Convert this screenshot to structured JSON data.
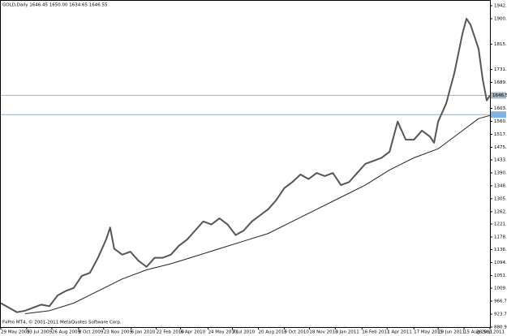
{
  "chart_data": {
    "type": "line",
    "title": "GOLD,Daily  1646.45 1650.00 1634.65 1646.55",
    "annotation": "FxPro MT4, © 2001-2011 MetaQuotes Software Corp.",
    "xlim": [
      0,
      604
    ],
    "xticks": [
      {
        "value": 0,
        "label": "29 May 2009"
      },
      {
        "value": 32,
        "label": "13 Jul 2009"
      },
      {
        "value": 63,
        "label": "26 Aug 2009"
      },
      {
        "value": 96,
        "label": "8 Oct 2009"
      },
      {
        "value": 127,
        "label": "23 Nov 2009"
      },
      {
        "value": 161,
        "label": "6 Jan 2010"
      },
      {
        "value": 192,
        "label": "22 Feb 2010"
      },
      {
        "value": 222,
        "label": "6 Apr 2010"
      },
      {
        "value": 256,
        "label": "24 May 2010"
      },
      {
        "value": 286,
        "label": "7 Jul 2010"
      },
      {
        "value": 318,
        "label": "20 Aug 2010"
      },
      {
        "value": 350,
        "label": "5 Oct 2010"
      },
      {
        "value": 381,
        "label": "18 Nov 2010"
      },
      {
        "value": 413,
        "label": "3 Jan 2011"
      },
      {
        "value": 446,
        "label": "16 Feb 2011"
      },
      {
        "value": 477,
        "label": "1 Apr 2011"
      },
      {
        "value": 510,
        "label": "17 May 2011"
      },
      {
        "value": 540,
        "label": "29 Jun 2011"
      },
      {
        "value": 572,
        "label": "15 Aug 2011"
      },
      {
        "value": 604,
        "label": "28 Sep 2011"
      }
    ],
    "ylim": [
      880.9,
      1961.7
    ],
    "yticks": [
      {
        "value": 1942.9,
        "label": "1942.90"
      },
      1900.05,
      {
        "value": 1815.9,
        "label": "1815.90"
      },
      {
        "value": 1731.9,
        "label": "1731.90"
      },
      {
        "value": 1689.5,
        "label": "1689.50"
      },
      {
        "value": 1603.6,
        "label": "1603.60"
      },
      {
        "value": 1560.7,
        "label": "1560.70"
      },
      1517.85,
      {
        "value": 1475.2,
        "label": "1475.20"
      },
      {
        "value": 1433.3,
        "label": "1433.30"
      },
      {
        "value": 1390.4,
        "label": "1390.40"
      },
      {
        "value": 1348,
        "label": "1348.00"
      },
      1305.15,
      {
        "value": 1262.3,
        "label": "1262.30"
      },
      1221.45,
      {
        "value": 1178.5,
        "label": "1178.50"
      },
      {
        "value": 1136.9,
        "label": "1136.90"
      },
      {
        "value": 1094,
        "label": "1094.00"
      },
      1051.05,
      {
        "value": 1009.5,
        "label": "1009.50"
      },
      {
        "value": 966.7,
        "label": "966.70"
      },
      923.75,
      {
        "value": 880.9,
        "label": "880.90"
      }
    ],
    "series": [
      {
        "color": "#555555",
        "x": [
          0,
          10,
          20,
          30,
          40,
          50,
          60,
          70,
          80,
          90,
          100,
          110,
          120,
          130,
          135,
          140,
          150,
          160,
          170,
          180,
          190,
          200,
          210,
          220,
          230,
          240,
          250,
          260,
          270,
          280,
          290,
          300,
          310,
          320,
          330,
          340,
          350,
          360,
          370,
          380,
          390,
          400,
          410,
          420,
          430,
          440,
          450,
          460,
          470,
          480,
          490,
          500,
          510,
          520,
          530,
          535,
          540,
          550,
          560,
          570,
          575,
          580,
          590,
          595,
          600,
          604
        ],
        "values": [
          960,
          945,
          930,
          935,
          945,
          955,
          950,
          985,
          1000,
          1010,
          1050,
          1060,
          1110,
          1170,
          1210,
          1140,
          1120,
          1130,
          1100,
          1080,
          1110,
          1110,
          1120,
          1150,
          1170,
          1200,
          1230,
          1220,
          1240,
          1220,
          1185,
          1200,
          1230,
          1250,
          1270,
          1300,
          1340,
          1360,
          1385,
          1370,
          1390,
          1380,
          1390,
          1350,
          1360,
          1390,
          1420,
          1430,
          1440,
          1460,
          1560,
          1500,
          1500,
          1530,
          1510,
          1490,
          1560,
          1620,
          1720,
          1850,
          1900,
          1880,
          1800,
          1700,
          1630,
          1646.55
        ]
      },
      {
        "color": "#222222",
        "x": [
          30,
          60,
          90,
          120,
          150,
          180,
          210,
          240,
          270,
          300,
          330,
          360,
          390,
          420,
          450,
          480,
          510,
          540,
          570,
          590,
          604
        ],
        "values": [
          925,
          935,
          960,
          1000,
          1040,
          1070,
          1090,
          1115,
          1140,
          1165,
          1190,
          1230,
          1270,
          1310,
          1350,
          1400,
          1440,
          1470,
          1530,
          1570,
          1580
        ]
      }
    ],
    "hlines": [
      {
        "value": 1646.55,
        "color": "#a9b4c2"
      },
      {
        "value": 1583,
        "color": "#7fb2e5"
      }
    ]
  }
}
